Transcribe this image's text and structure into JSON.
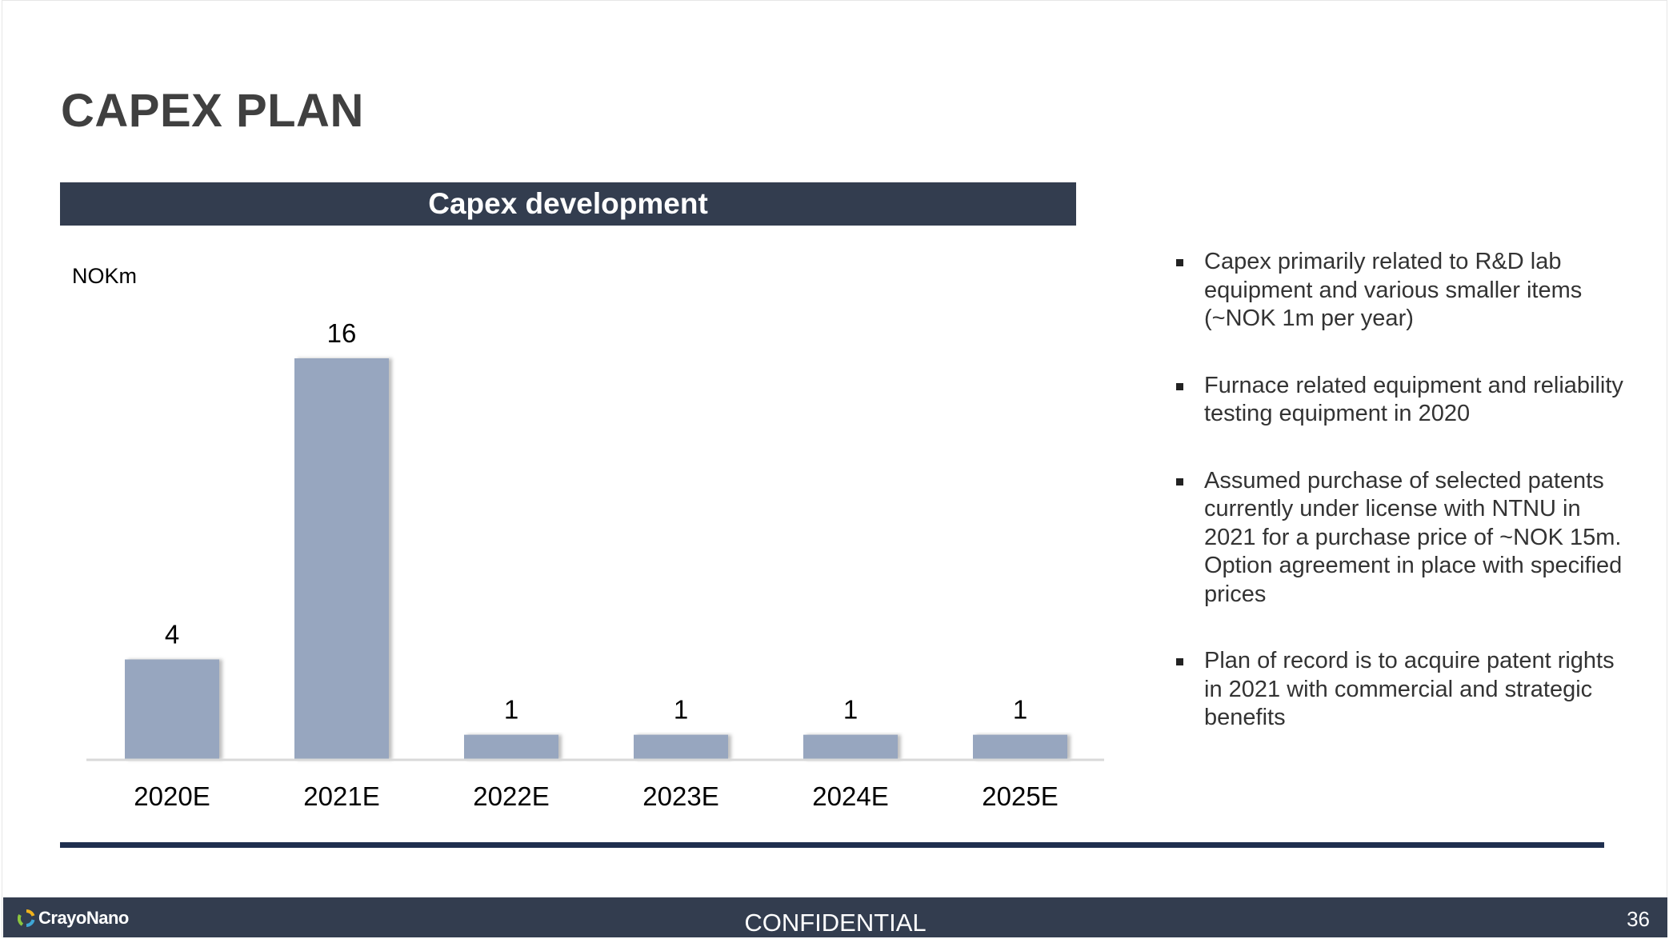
{
  "title": "CAPEX PLAN",
  "chart_header": "Capex development",
  "chart_data": {
    "type": "bar",
    "title": "Capex development",
    "ylabel": "NOKm",
    "categories": [
      "2020E",
      "2021E",
      "2022E",
      "2023E",
      "2024E",
      "2025E"
    ],
    "values": [
      4,
      16,
      1,
      1,
      1,
      1
    ],
    "data_labels": [
      "4",
      "16",
      "1",
      "1",
      "1",
      "1"
    ],
    "ylim": [
      0,
      16
    ],
    "grid": false,
    "legend": "none",
    "bar_color": "#97a6bf"
  },
  "bullets": [
    "Capex primarily related to R&D lab equipment and various smaller items (~NOK 1m per year)",
    "Furnace related equipment and reliability testing equipment in 2020",
    "Assumed purchase of selected patents currently under license with NTNU in 2021 for a purchase price of ~NOK 15m. Option agreement in place with specified prices",
    "Plan of record is to acquire patent rights in 2021 with commercial and strategic benefits"
  ],
  "footer": {
    "logo_text": "CrayoNano",
    "confidential": "CONFIDENTIAL",
    "page_number": "36"
  },
  "colors": {
    "header_bg": "#333d4f",
    "rule": "#1f2f4f",
    "title": "#404040"
  }
}
